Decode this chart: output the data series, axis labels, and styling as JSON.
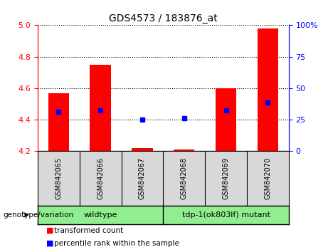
{
  "title": "GDS4573 / 183876_at",
  "samples": [
    "GSM842065",
    "GSM842066",
    "GSM842067",
    "GSM842068",
    "GSM842069",
    "GSM842070"
  ],
  "red_values": [
    4.57,
    4.75,
    4.22,
    4.21,
    4.6,
    4.98
  ],
  "blue_values": [
    4.45,
    4.46,
    4.4,
    4.41,
    4.46,
    4.51
  ],
  "ylim_left": [
    4.2,
    5.0
  ],
  "ylim_right": [
    0,
    100
  ],
  "yticks_left": [
    4.2,
    4.4,
    4.6,
    4.8,
    5.0
  ],
  "yticks_right": [
    0,
    25,
    50,
    75,
    100
  ],
  "yticklabels_right": [
    "0",
    "25",
    "50",
    "75",
    "100%"
  ],
  "group1_label": "wildtype",
  "group2_label": "tdp-1(ok803lf) mutant",
  "group_label": "genotype/variation",
  "group_color": "#90EE90",
  "legend_items": [
    {
      "label": "transformed count",
      "color": "red"
    },
    {
      "label": "percentile rank within the sample",
      "color": "blue"
    }
  ],
  "bar_bottom": 4.2,
  "bar_width": 0.5,
  "bg_color": "#d8d8d8",
  "plot_bg": "white",
  "left_axis_color": "red",
  "right_axis_color": "blue"
}
